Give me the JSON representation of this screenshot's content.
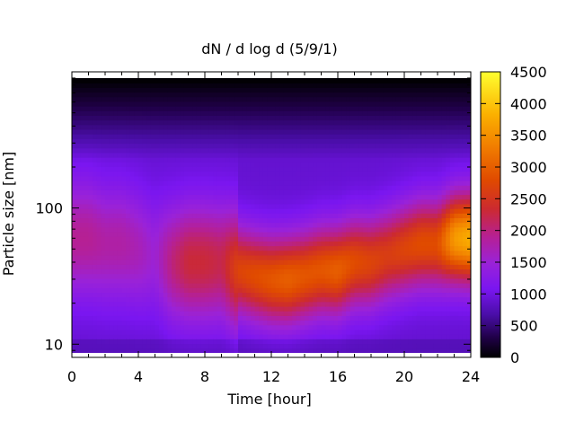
{
  "chart_data": {
    "type": "heatmap",
    "title": "dN / d log d (5/9/1)",
    "xlabel": "Time [hour]",
    "ylabel": "Particle size [nm]",
    "x_range": [
      0,
      24
    ],
    "y_range_nm": [
      8,
      900
    ],
    "y_scale": "log",
    "x_ticks": [
      "0",
      "4",
      "8",
      "12",
      "16",
      "20",
      "24"
    ],
    "y_ticks": [
      "10",
      "100"
    ],
    "colorbar": {
      "range": [
        0,
        4500
      ],
      "ticks": [
        "0",
        "500",
        "1000",
        "1500",
        "2000",
        "2500",
        "3000",
        "3500",
        "4000",
        "4500"
      ],
      "colormap": [
        "#000000",
        "#3a0a6e",
        "#7a16f0",
        "#9a22d8",
        "#c0208a",
        "#d83010",
        "#f06a00",
        "#fba400",
        "#ffe000",
        "#ffff40"
      ]
    },
    "time_hours": [
      0,
      1,
      2,
      3,
      4,
      5,
      6,
      7,
      8,
      9,
      10,
      11,
      12,
      13,
      14,
      15,
      16,
      17,
      18,
      19,
      20,
      21,
      22,
      23,
      24
    ],
    "mode_diameter_nm": [
      60,
      60,
      55,
      55,
      50,
      45,
      40,
      40,
      40,
      40,
      35,
      32,
      30,
      30,
      32,
      35,
      35,
      40,
      40,
      45,
      50,
      55,
      55,
      60,
      60
    ],
    "peak_concentration": [
      1900,
      1900,
      1800,
      1800,
      1700,
      1500,
      2000,
      2300,
      2300,
      2200,
      2700,
      2800,
      2900,
      3000,
      2900,
      2900,
      3000,
      2800,
      2700,
      2600,
      2700,
      2800,
      2800,
      3600,
      3800
    ]
  }
}
